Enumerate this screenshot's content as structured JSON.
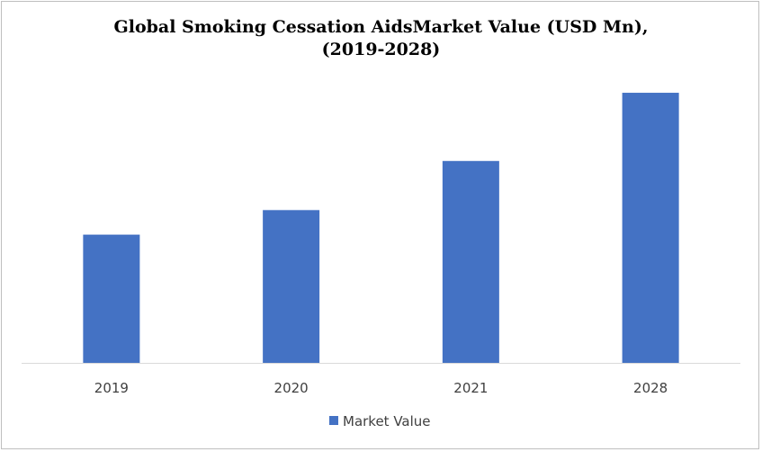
{
  "title_line1": "Global  Smoking Cessation AidsMarket Value (USD Mn),",
  "title_line2": "(2019-2028)",
  "chart_data": {
    "type": "bar",
    "title": "Global  Smoking Cessation AidsMarket Value (USD Mn), (2019-2028)",
    "categories": [
      "2019",
      "2020",
      "2021",
      "2028"
    ],
    "series": [
      {
        "name": "Market Value",
        "values": [
          47,
          56,
          74,
          99
        ]
      }
    ],
    "xlabel": "",
    "ylabel": "",
    "ylim": [
      0,
      100
    ],
    "grid": false,
    "legend": "bottom",
    "bar_color": "#4472c4"
  }
}
